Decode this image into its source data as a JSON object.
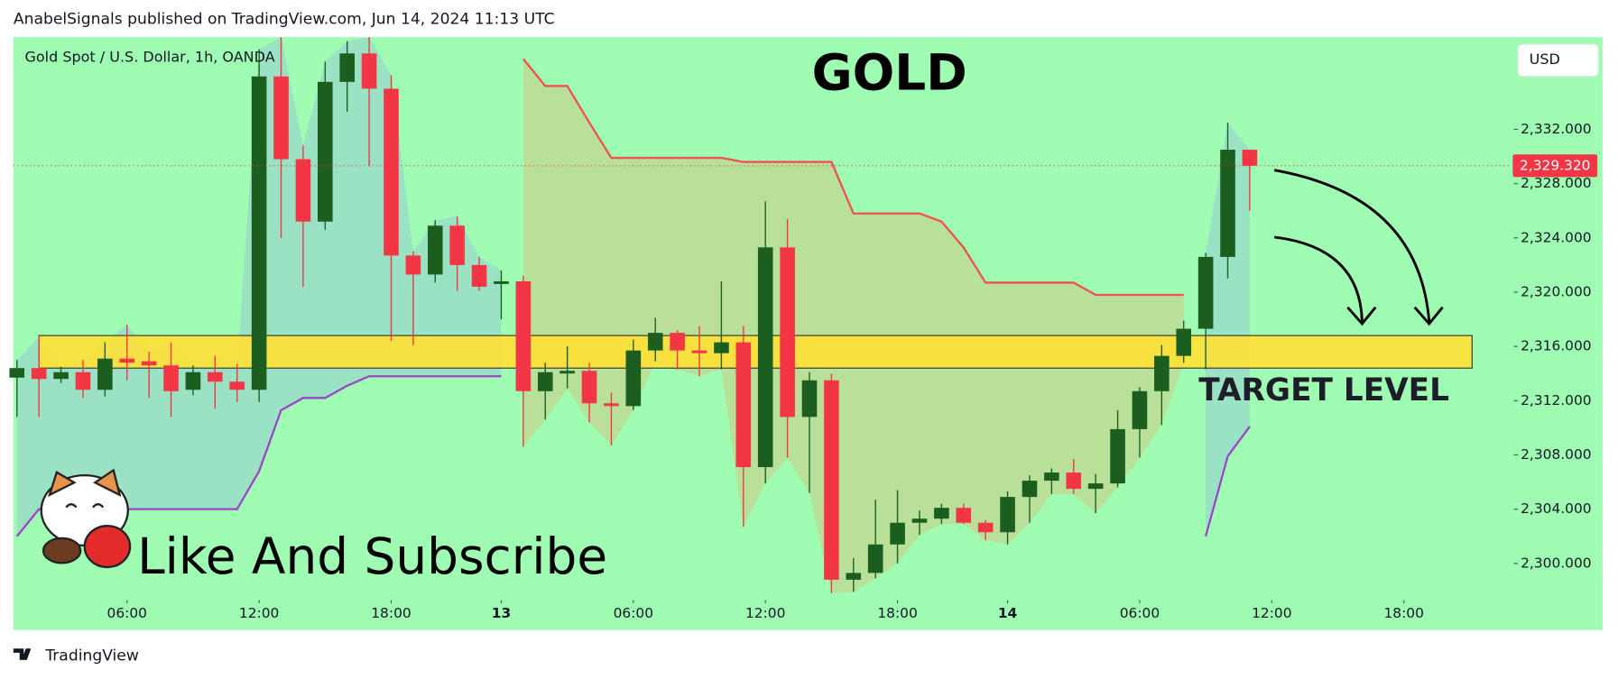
{
  "header": "AnabelSignals published on TradingView.com, Jun 14, 2024 11:13 UTC",
  "footer": "TradingView",
  "chart_data": {
    "type": "candlestick",
    "title": "GOLD",
    "symbol": "Gold Spot / U.S. Dollar, 1h, OANDA",
    "currency": "USD",
    "annotation": "Like And Subscribe",
    "background": "#9ffdb3",
    "up_color": "#1b5e20",
    "down_color": "#f23645",
    "open": [
      2313.7,
      2314.4,
      2313.6,
      2314.1,
      2312.8,
      2315.1,
      2314.9,
      2314.6,
      2312.8,
      2314.1,
      2313.4,
      2312.8,
      2335.9,
      2329.8,
      2325.2,
      2335.5,
      2337.6,
      2335.0,
      2322.7,
      2321.3,
      2324.9,
      2322.0,
      2320.6,
      2320.8,
      2312.7,
      2314.0,
      2314.2,
      2311.8,
      2311.6,
      2315.7,
      2317.0,
      2315.7,
      2315.5,
      2316.3,
      2307.1,
      2323.3,
      2310.8,
      2313.5,
      2298.8,
      2299.3,
      2301.4,
      2303.0,
      2303.3,
      2304.1,
      2303.0,
      2302.3,
      2304.9,
      2306.1,
      2306.7,
      2305.5,
      2305.9,
      2309.9,
      2312.7,
      2315.3,
      2317.3,
      2322.6,
      2330.5
    ],
    "high": [
      2315.0,
      2316.7,
      2314.5,
      2315.0,
      2316.3,
      2317.6,
      2315.6,
      2316.3,
      2314.6,
      2315.3,
      2314.7,
      2337.9,
      2338.8,
      2330.8,
      2337.0,
      2338.5,
      2338.8,
      2336.0,
      2323.0,
      2325.3,
      2325.6,
      2322.6,
      2321.6,
      2321.2,
      2314.8,
      2316.0,
      2314.8,
      2312.6,
      2316.5,
      2318.1,
      2317.2,
      2317.5,
      2320.8,
      2317.5,
      2326.7,
      2325.4,
      2314.1,
      2314.0,
      2300.4,
      2304.7,
      2305.4,
      2303.9,
      2304.4,
      2304.4,
      2303.2,
      2305.3,
      2306.5,
      2307.0,
      2307.7,
      2306.6,
      2311.3,
      2313.0,
      2316.1,
      2317.9,
      2322.9,
      2332.5,
      2330.5
    ],
    "low": [
      2310.8,
      2310.8,
      2313.3,
      2312.2,
      2312.3,
      2313.5,
      2312.2,
      2310.8,
      2312.4,
      2311.4,
      2311.9,
      2311.9,
      2324.0,
      2320.4,
      2324.6,
      2333.3,
      2329.3,
      2316.4,
      2316.1,
      2320.7,
      2320.1,
      2320.1,
      2318.0,
      2308.6,
      2310.6,
      2312.9,
      2310.4,
      2308.7,
      2311.3,
      2314.9,
      2314.3,
      2313.8,
      2314.3,
      2302.7,
      2305.9,
      2307.8,
      2305.2,
      2297.8,
      2297.9,
      2298.9,
      2300.0,
      2302.1,
      2302.9,
      2302.9,
      2301.7,
      2301.4,
      2303.0,
      2305.1,
      2305.1,
      2303.7,
      2305.6,
      2307.8,
      2310.2,
      2314.8,
      2314.3,
      2321.0,
      2326.0
    ],
    "close": [
      2314.4,
      2313.6,
      2314.1,
      2312.8,
      2315.1,
      2314.8,
      2314.6,
      2312.7,
      2314.1,
      2313.4,
      2312.8,
      2335.9,
      2329.8,
      2325.2,
      2335.5,
      2337.6,
      2335.0,
      2322.7,
      2321.3,
      2324.9,
      2322.0,
      2320.4,
      2320.8,
      2312.7,
      2314.1,
      2314.2,
      2311.8,
      2311.6,
      2315.7,
      2317.0,
      2315.7,
      2315.5,
      2316.3,
      2307.1,
      2323.3,
      2310.8,
      2313.5,
      2298.8,
      2299.3,
      2301.4,
      2303.0,
      2303.3,
      2304.1,
      2303.0,
      2302.3,
      2304.9,
      2306.1,
      2306.7,
      2305.5,
      2305.9,
      2309.9,
      2312.7,
      2315.3,
      2317.3,
      2322.6,
      2330.5,
      2329.32
    ],
    "lines": [
      {
        "color": "#f05050",
        "values": [
          null,
          null,
          null,
          null,
          null,
          null,
          null,
          null,
          null,
          null,
          null,
          null,
          null,
          null,
          null,
          null,
          null,
          null,
          null,
          null,
          null,
          null,
          null,
          2337.2,
          2335.2,
          2335.2,
          2332.5,
          2329.9,
          2329.9,
          2329.9,
          2329.9,
          2329.9,
          2329.9,
          2329.6,
          2329.6,
          2329.6,
          2329.6,
          2329.6,
          2325.8,
          2325.8,
          2325.8,
          2325.8,
          2325.2,
          2323.3,
          2320.7,
          2320.7,
          2320.7,
          2320.7,
          2320.7,
          2319.8,
          2319.8,
          2319.8,
          2319.8,
          2319.8,
          null,
          null,
          null
        ]
      },
      {
        "color": "#9c44c8",
        "values": [
          2302.0,
          2304.0,
          2304.0,
          2304.0,
          2304.0,
          2304.0,
          2304.0,
          2304.0,
          2304.0,
          2304.0,
          2304.0,
          2306.8,
          2311.3,
          2312.2,
          2312.2,
          2313.1,
          2313.8,
          2313.8,
          2313.8,
          2313.8,
          2313.8,
          2313.8,
          2313.8,
          null,
          null,
          null,
          null,
          null,
          null,
          null,
          null,
          null,
          null,
          null,
          null,
          null,
          null,
          null,
          null,
          null,
          null,
          null,
          null,
          null,
          null,
          null,
          null,
          null,
          null,
          null,
          null,
          null,
          null,
          null,
          2302.0,
          2307.9,
          2310.1
        ]
      }
    ],
    "last_price": {
      "value": 2329.32,
      "label": "2,329.320"
    },
    "target_zone": {
      "label": "TARGET LEVEL",
      "ymin": 2314.4,
      "ymax": 2316.8,
      "xmin": 1,
      "xmax": 66.1,
      "color": "#ffe135"
    },
    "xlim": [
      -0.16,
      67.9
    ],
    "ylim": [
      2297.6,
      2338.8
    ],
    "xticks": [
      {
        "value": 5,
        "label": "06:00"
      },
      {
        "value": 11,
        "label": "12:00"
      },
      {
        "value": 17,
        "label": "18:00"
      },
      {
        "value": 22,
        "label": "13"
      },
      {
        "value": 28,
        "label": "06:00"
      },
      {
        "value": 34,
        "label": "12:00"
      },
      {
        "value": 40,
        "label": "18:00"
      },
      {
        "value": 45,
        "label": "14"
      },
      {
        "value": 51,
        "label": "06:00"
      },
      {
        "value": 57,
        "label": "12:00"
      },
      {
        "value": 63,
        "label": "18:00"
      }
    ],
    "yticks": [
      {
        "value": 2300,
        "label": "2,300.000"
      },
      {
        "value": 2304,
        "label": "2,304.000"
      },
      {
        "value": 2308,
        "label": "2,308.000"
      },
      {
        "value": 2312,
        "label": "2,312.000"
      },
      {
        "value": 2316,
        "label": "2,316.000"
      },
      {
        "value": 2320,
        "label": "2,320.000"
      },
      {
        "value": 2324,
        "label": "2,324.000"
      },
      {
        "value": 2328,
        "label": "2,328.000"
      },
      {
        "value": 2332,
        "label": "2,332.000"
      }
    ]
  }
}
